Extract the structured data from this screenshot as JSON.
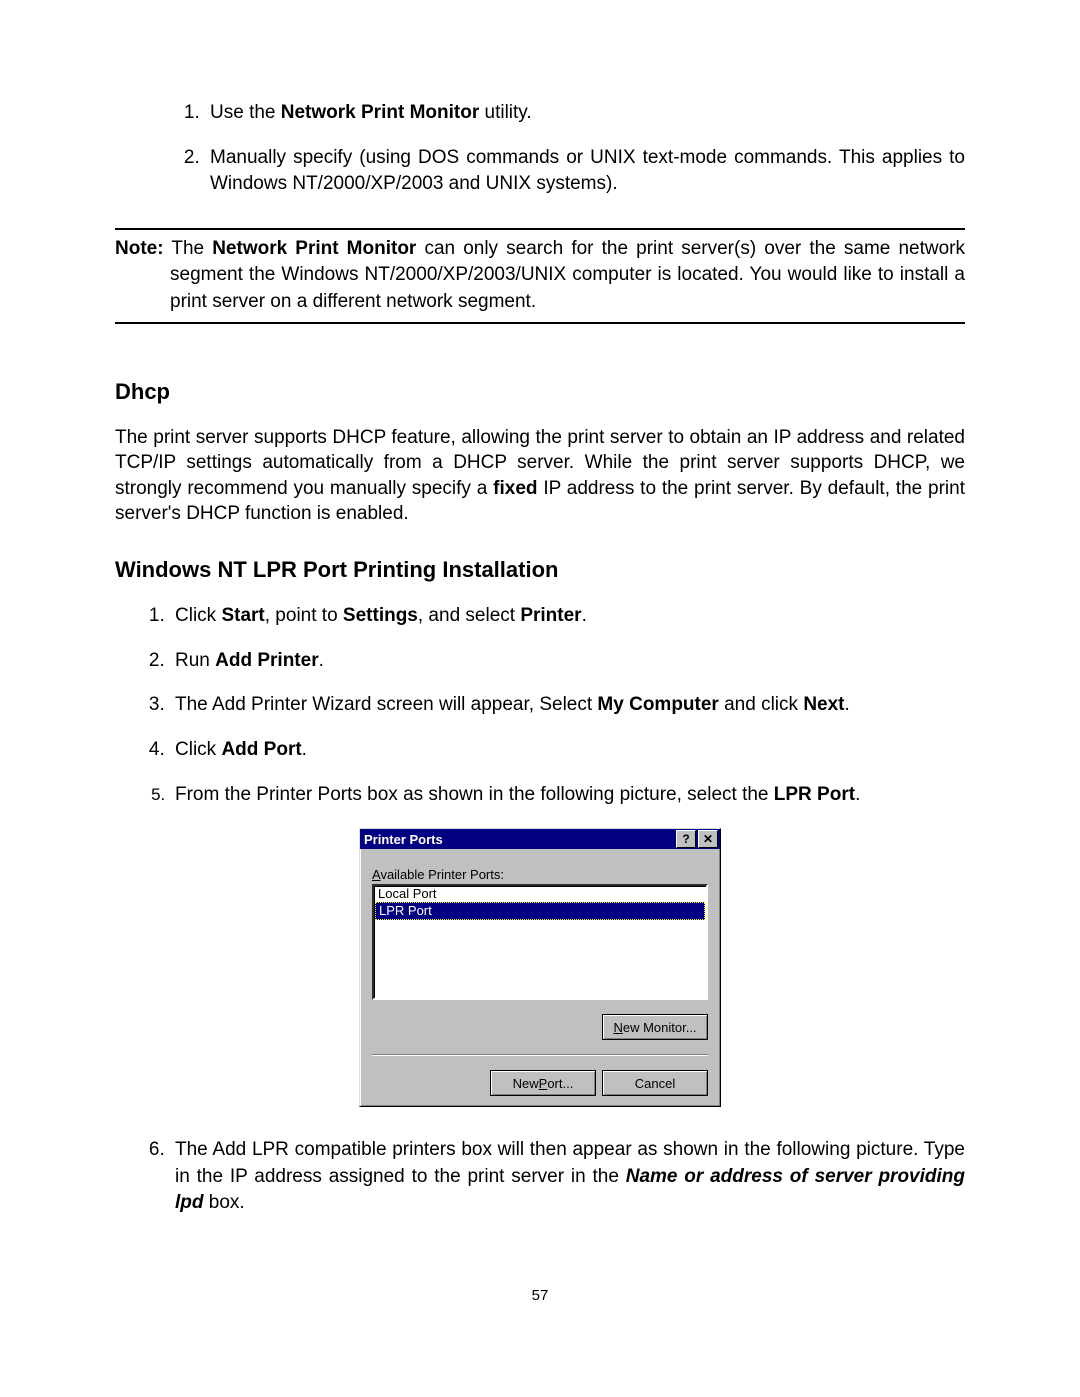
{
  "top_list": {
    "item1_pre": "Use the ",
    "item1_bold": "Network Print Monitor",
    "item1_post": " utility.",
    "item2": "Manually specify (using DOS commands or UNIX text-mode commands. This applies to Windows NT/2000/XP/2003 and UNIX systems)."
  },
  "note": {
    "label": "Note:",
    "pre": " The ",
    "bold": "Network Print Monitor",
    "post": " can only search for the print server(s) over the same network segment the Windows NT/2000/XP/2003/UNIX computer is located. You would like to install a print server on a different network segment."
  },
  "dhcp": {
    "heading": "Dhcp",
    "para_pre": "The print server supports DHCP feature, allowing the print server to obtain an IP address and related TCP/IP settings automatically from a DHCP server. While the print server supports DHCP, we strongly recommend you manually specify a ",
    "para_bold": "fixed",
    "para_post": " IP address to the print server. By default, the print server's DHCP function is enabled."
  },
  "install": {
    "heading": "Windows NT LPR Port Printing Installation",
    "step1": {
      "pre": "Click ",
      "b1": "Start",
      "mid1": ", point to ",
      "b2": "Settings",
      "mid2": ", and select ",
      "b3": "Printer",
      "post": "."
    },
    "step2": {
      "pre": "Run ",
      "b1": "Add Printer",
      "post": "."
    },
    "step3": {
      "pre": "The Add Printer Wizard screen will appear, Select ",
      "b1": "My Computer",
      "mid": " and click ",
      "b2": "Next",
      "post": "."
    },
    "step4": {
      "pre": "Click ",
      "b1": "Add Port",
      "post": "."
    },
    "step5": {
      "pre": "From the Printer Ports box as shown in the following picture, select the ",
      "b1": "LPR Port",
      "post": "."
    },
    "step6": {
      "pre": "The Add LPR compatible printers box will then appear as shown in the following picture. Type in the IP address assigned to the print server in the ",
      "bi": "Name or address of server providing lpd",
      "post": " box."
    }
  },
  "dialog": {
    "title": "Printer Ports",
    "help_glyph": "?",
    "close_glyph": "✕",
    "list_label_ul": "A",
    "list_label_rest": "vailable Printer Ports:",
    "items": [
      "Local Port",
      "LPR Port"
    ],
    "selected_index": 1,
    "btn_monitor_ul": "N",
    "btn_monitor_rest": "ew Monitor...",
    "btn_port_pre": "New ",
    "btn_port_ul": "P",
    "btn_port_post": "ort...",
    "btn_cancel": "Cancel",
    "colors": {
      "titlebar_bg": "#000080",
      "titlebar_fg": "#ffffff",
      "face": "#c0c0c0",
      "selection_bg": "#000080",
      "selection_fg": "#ffffff"
    }
  },
  "page_number": "57"
}
